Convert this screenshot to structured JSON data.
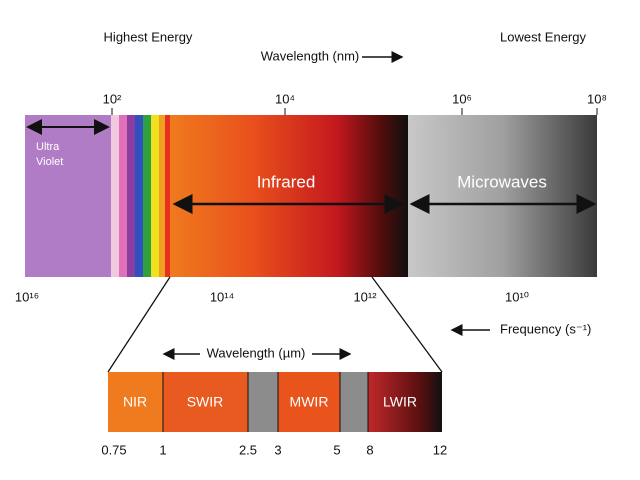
{
  "header": {
    "left": "Highest Energy",
    "center": "Wavelength (nm)",
    "right": "Lowest Energy"
  },
  "wavelength_ticks": [
    "10²",
    "10⁴",
    "10⁶",
    "10⁸"
  ],
  "regions": {
    "ultraviolet": [
      "Ultra",
      "Violet"
    ],
    "infrared": "Infrared",
    "microwaves": "Microwaves"
  },
  "frequency_ticks": [
    "10¹⁶",
    "10¹⁴",
    "10¹²",
    "10¹⁰"
  ],
  "frequency_label": "Frequency (s⁻¹)",
  "detail": {
    "title": "Wavelength (µm)",
    "bands": [
      "NIR",
      "SWIR",
      "MWIR",
      "LWIR"
    ],
    "ticks": [
      "0.75",
      "1",
      "2.5",
      "3",
      "5",
      "8",
      "12"
    ]
  }
}
